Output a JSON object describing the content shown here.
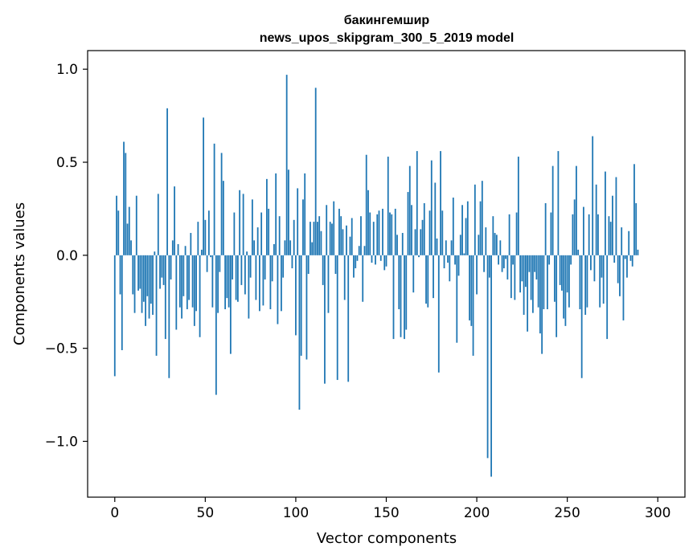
{
  "chart_data": {
    "type": "bar",
    "title": "бакингемшир",
    "subtitle": "news_upos_skipgram_300_5_2019 model",
    "xlabel": "Vector components",
    "ylabel": "Components values",
    "xlim": [
      -15,
      315
    ],
    "ylim": [
      -1.3,
      1.1
    ],
    "xticks": [
      0,
      50,
      100,
      150,
      200,
      250,
      300
    ],
    "yticks": [
      1.0,
      0.5,
      0.0,
      -0.5,
      -1.0
    ],
    "ytick_labels": [
      "1.0",
      "0.5",
      "0.0",
      "−0.5",
      "−1.0"
    ],
    "bar_color": "#1f77b4",
    "grid": false,
    "values": [
      -0.65,
      0.32,
      0.24,
      -0.21,
      -0.51,
      0.61,
      0.55,
      0.17,
      0.26,
      0.08,
      -0.21,
      -0.31,
      0.32,
      -0.19,
      -0.18,
      -0.31,
      -0.25,
      -0.38,
      -0.22,
      -0.34,
      -0.26,
      -0.32,
      0.02,
      -0.54,
      0.33,
      -0.18,
      -0.12,
      -0.16,
      -0.45,
      0.79,
      -0.66,
      -0.13,
      0.08,
      0.37,
      -0.4,
      0.06,
      -0.28,
      -0.34,
      -0.22,
      0.05,
      -0.29,
      -0.24,
      0.12,
      -0.28,
      -0.38,
      -0.3,
      0.18,
      -0.44,
      0.03,
      0.74,
      0.19,
      -0.09,
      0.24,
      -0.01,
      -0.28,
      0.6,
      -0.75,
      -0.31,
      -0.09,
      0.55,
      0.4,
      -0.29,
      -0.23,
      -0.28,
      -0.53,
      -0.13,
      0.23,
      -0.24,
      -0.25,
      0.35,
      -0.16,
      0.33,
      -0.21,
      0.02,
      -0.34,
      -0.12,
      0.3,
      0.08,
      -0.24,
      0.15,
      -0.3,
      0.23,
      -0.27,
      -0.13,
      0.41,
      0.25,
      -0.29,
      -0.14,
      0.06,
      0.44,
      -0.37,
      0.21,
      -0.3,
      -0.12,
      0.08,
      0.97,
      0.46,
      0.08,
      -0.07,
      0.19,
      -0.43,
      0.36,
      -0.83,
      -0.54,
      0.3,
      0.44,
      -0.56,
      -0.1,
      0.18,
      0.07,
      0.18,
      0.9,
      0.18,
      0.21,
      0.13,
      -0.16,
      -0.69,
      0.27,
      -0.31,
      0.18,
      0.17,
      0.29,
      -0.1,
      -0.67,
      0.25,
      0.21,
      0.14,
      -0.24,
      0.16,
      -0.68,
      0.1,
      0.2,
      -0.12,
      -0.07,
      -0.03,
      0.05,
      0.21,
      -0.25,
      0.05,
      0.54,
      0.35,
      0.23,
      -0.04,
      0.18,
      -0.05,
      0.22,
      0.24,
      -0.03,
      0.25,
      -0.08,
      -0.06,
      0.53,
      0.23,
      0.22,
      -0.45,
      0.25,
      0.11,
      -0.29,
      -0.44,
      0.12,
      -0.45,
      -0.4,
      0.34,
      0.48,
      0.27,
      -0.2,
      0.14,
      0.56,
      -0.01,
      0.14,
      0.19,
      0.28,
      -0.26,
      -0.28,
      0.24,
      0.51,
      -0.23,
      0.39,
      0.09,
      -0.63,
      0.56,
      0.24,
      -0.07,
      0.08,
      -0.04,
      -0.14,
      0.08,
      0.31,
      -0.05,
      -0.47,
      -0.11,
      0.11,
      0.27,
      0.01,
      0.2,
      0.29,
      -0.35,
      -0.38,
      -0.54,
      0.38,
      -0.21,
      0.11,
      0.29,
      0.4,
      -0.09,
      0.15,
      -1.09,
      -0.12,
      -1.19,
      0.21,
      0.12,
      0.11,
      -0.05,
      0.08,
      -0.09,
      -0.07,
      -0.02,
      -0.13,
      0.22,
      -0.23,
      -0.05,
      -0.24,
      0.23,
      0.53,
      -0.2,
      -0.14,
      -0.32,
      -0.17,
      -0.41,
      -0.09,
      -0.24,
      -0.31,
      -0.09,
      -0.13,
      -0.28,
      -0.42,
      -0.53,
      -0.29,
      0.28,
      -0.29,
      -0.05,
      0.23,
      0.48,
      -0.25,
      -0.44,
      0.56,
      -0.16,
      -0.19,
      -0.34,
      -0.38,
      -0.2,
      -0.28,
      -0.05,
      0.22,
      0.3,
      0.48,
      0.03,
      -0.29,
      -0.66,
      0.26,
      -0.32,
      -0.28,
      0.22,
      -0.08,
      0.64,
      -0.14,
      0.38,
      0.22,
      -0.28,
      -0.12,
      -0.26,
      0.45,
      -0.45,
      0.21,
      0.18,
      0.32,
      -0.04,
      0.42,
      -0.15,
      -0.22,
      0.15,
      -0.35,
      -0.02,
      -0.12,
      0.13,
      -0.03,
      -0.06,
      0.49,
      0.28,
      0.03
    ]
  }
}
